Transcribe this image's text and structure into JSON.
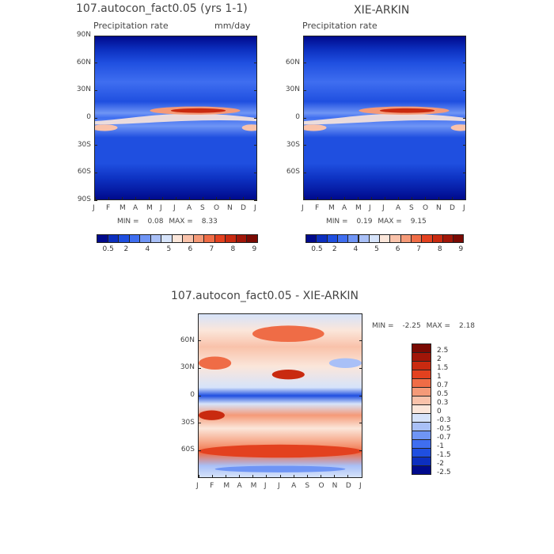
{
  "chart_data": [
    {
      "type": "heatmap",
      "id": "panel-model",
      "title": "107.autocon_fact0.05 (yrs 1-1)",
      "subtitle_left": "Precipitation rate",
      "subtitle_right": "mm/day",
      "x_ticks": [
        "J",
        "F",
        "M",
        "A",
        "M",
        "J",
        "J",
        "A",
        "S",
        "O",
        "N",
        "D",
        "J"
      ],
      "y_ticks": [
        "90N",
        "60N",
        "30N",
        "0",
        "30S",
        "60S",
        "90S"
      ],
      "ylim": [
        -90,
        90
      ],
      "min_label": "MIN =",
      "min_value": "0.08",
      "max_label": "MAX =",
      "max_value": "8.33",
      "colorbar_labels": [
        "0.5",
        "2",
        "4",
        "5",
        "6",
        "7",
        "8",
        "9"
      ],
      "colorbar_colors": [
        "#000a8c",
        "#0c2fbf",
        "#1f4fe0",
        "#3f6ef0",
        "#6f95f5",
        "#a9c0f7",
        "#d6e3fa",
        "#fbe6da",
        "#f9c2aa",
        "#f59a78",
        "#ef6c46",
        "#e3411f",
        "#c92a10",
        "#a11608",
        "#7a0a03"
      ]
    },
    {
      "type": "heatmap",
      "id": "panel-obs",
      "title": "XIE-ARKIN",
      "subtitle_left": "Precipitation rate",
      "x_ticks": [
        "J",
        "F",
        "M",
        "A",
        "M",
        "J",
        "J",
        "A",
        "S",
        "O",
        "N",
        "D",
        "J"
      ],
      "y_ticks": [
        "60N",
        "30N",
        "0",
        "30S",
        "60S"
      ],
      "ylim": [
        -90,
        90
      ],
      "min_label": "MIN =",
      "min_value": "0.19",
      "max_label": "MAX =",
      "max_value": "9.15",
      "colorbar_labels": [
        "0.5",
        "2",
        "4",
        "5",
        "6",
        "7",
        "8",
        "9"
      ],
      "colorbar_colors": [
        "#000a8c",
        "#0c2fbf",
        "#1f4fe0",
        "#3f6ef0",
        "#6f95f5",
        "#a9c0f7",
        "#d6e3fa",
        "#fbe6da",
        "#f9c2aa",
        "#f59a78",
        "#ef6c46",
        "#e3411f",
        "#c92a10",
        "#a11608",
        "#7a0a03"
      ]
    },
    {
      "type": "heatmap",
      "id": "panel-diff",
      "title": "107.autocon_fact0.05 - XIE-ARKIN",
      "x_ticks": [
        "J",
        "F",
        "M",
        "A",
        "M",
        "J",
        "J",
        "A",
        "S",
        "O",
        "N",
        "D",
        "J"
      ],
      "y_ticks": [
        "60N",
        "30N",
        "0",
        "30S",
        "60S"
      ],
      "ylim": [
        -90,
        90
      ],
      "min_label": "MIN =",
      "min_value": "-2.25",
      "max_label": "MAX =",
      "max_value": "2.18",
      "colorbar_labels": [
        "2.5",
        "2",
        "1.5",
        "1",
        "0.7",
        "0.5",
        "0.3",
        "0",
        "-0.3",
        "-0.5",
        "-0.7",
        "-1",
        "-1.5",
        "-2",
        "-2.5"
      ],
      "colorbar_colors": [
        "#7a0a03",
        "#a11608",
        "#c92a10",
        "#e3411f",
        "#ef6c46",
        "#f59a78",
        "#f9c2aa",
        "#fbe6da",
        "#d6e3fa",
        "#a9c0f7",
        "#6f95f5",
        "#3f6ef0",
        "#1f4fe0",
        "#0c2fbf",
        "#000a8c"
      ]
    }
  ]
}
